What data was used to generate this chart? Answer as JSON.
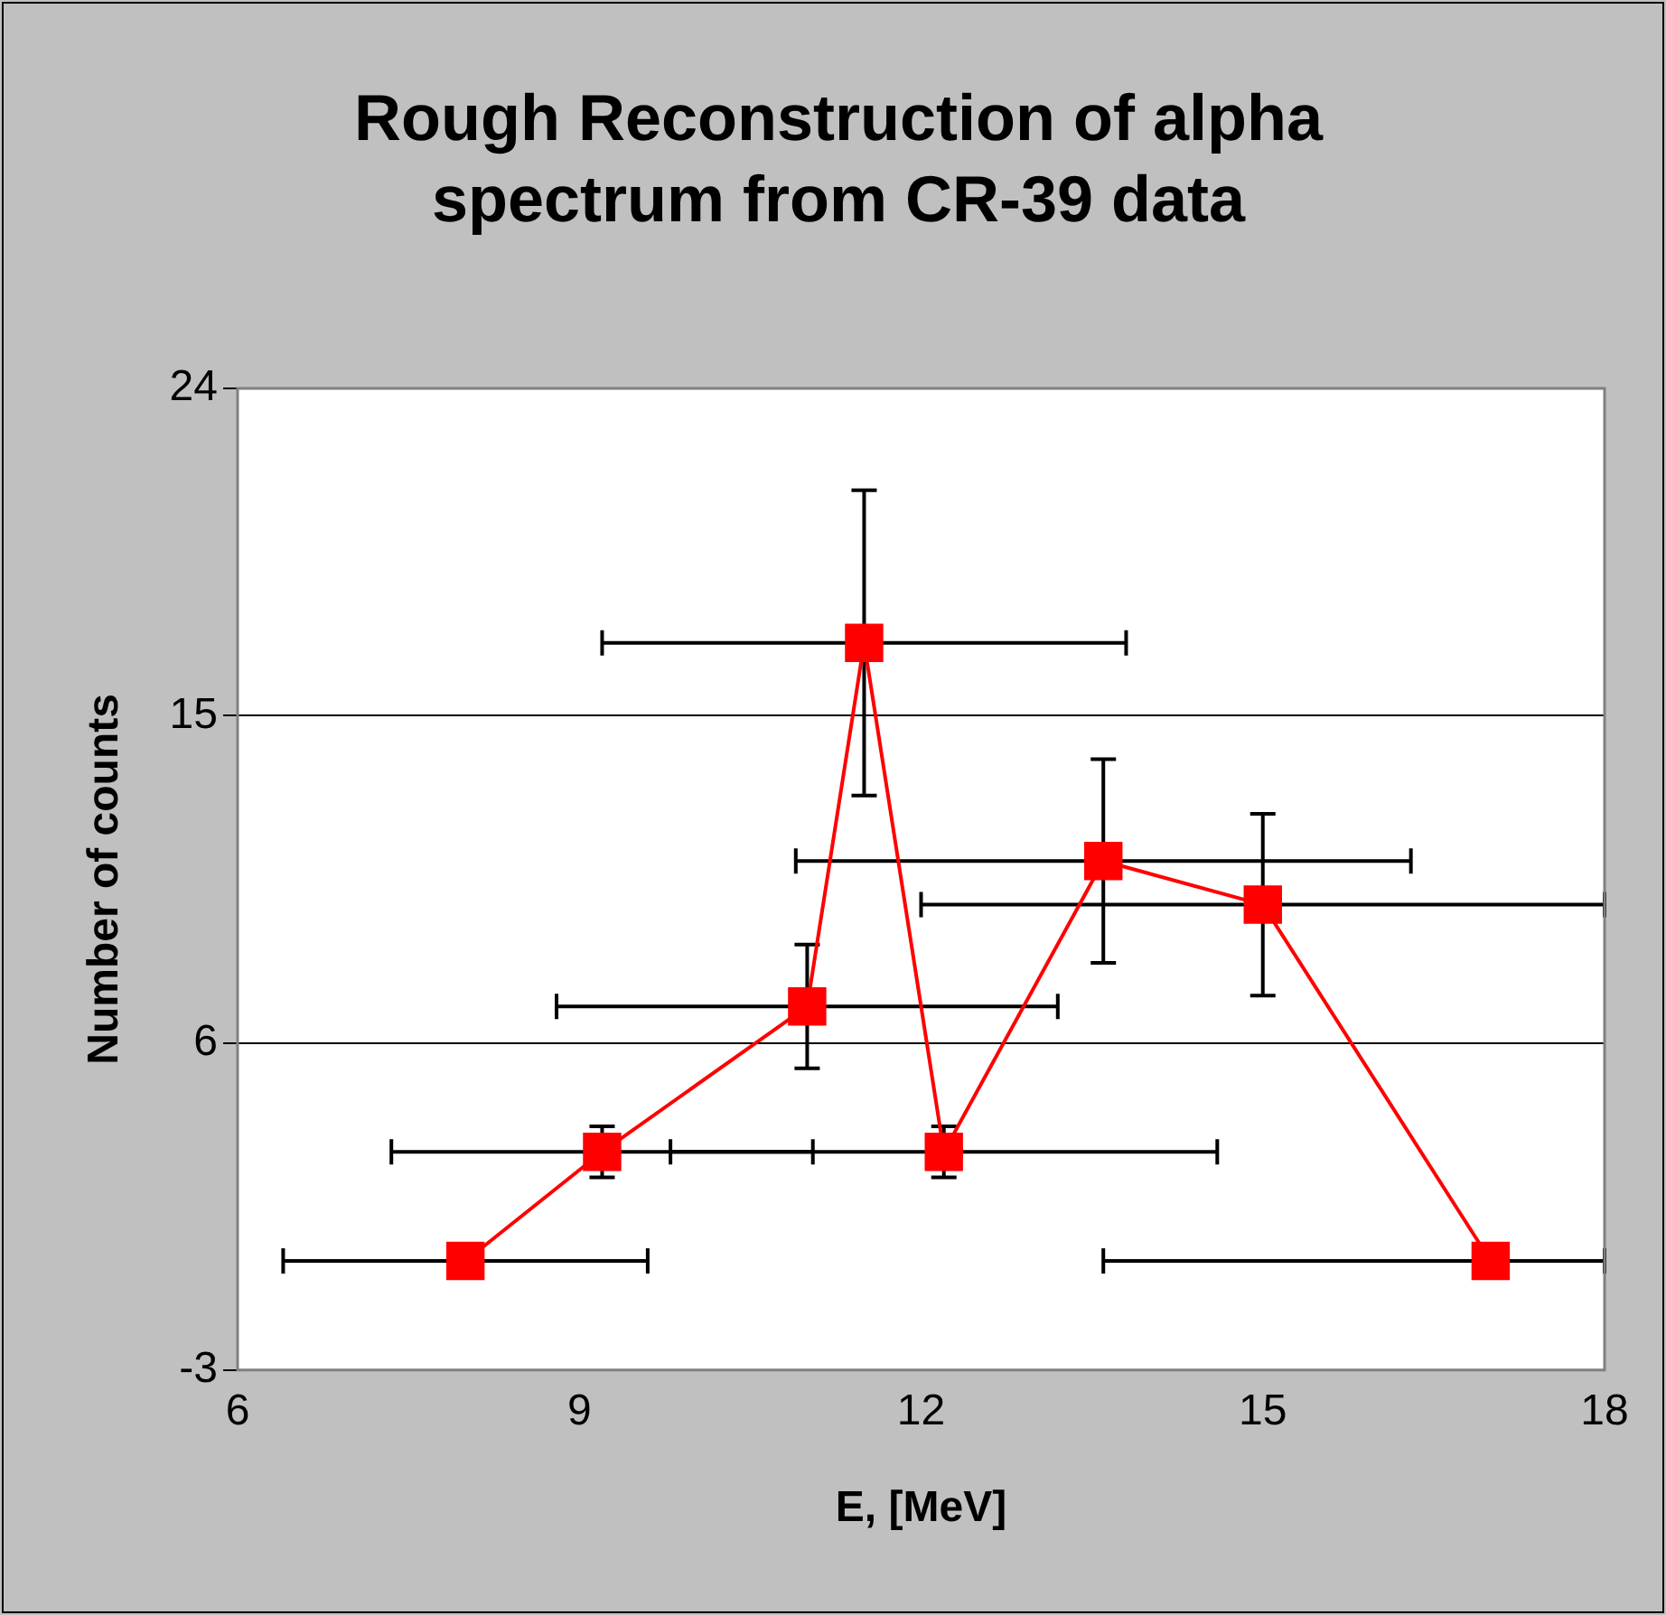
{
  "chart_data": {
    "type": "line",
    "title": "Rough Reconstruction of alpha spectrum from CR-39 data",
    "xlabel": "E, [MeV]",
    "ylabel": "Number of counts",
    "x": [
      8.0,
      9.2,
      11.0,
      11.5,
      12.2,
      13.6,
      15.0,
      17.0
    ],
    "series": [
      {
        "color": "#ff0000",
        "values": [
          0,
          3,
          7,
          17,
          3,
          11,
          9.8,
          0
        ],
        "errors": [
          null,
          0.7,
          1.7,
          4.2,
          0.7,
          2.8,
          2.5,
          null
        ],
        "xerrors": [
          1.6,
          1.85,
          2.2,
          2.3,
          2.4,
          2.7,
          3.0,
          [
            13.6,
            18
          ]
        ]
      }
    ],
    "xlim": [
      6,
      18
    ],
    "xticks": [
      6,
      9,
      12,
      15,
      18
    ],
    "ylim": [
      -3,
      24
    ],
    "yticks": [
      -3,
      6,
      15,
      24
    ],
    "grid": "y",
    "legend": false,
    "marker": "square",
    "line_style": "solid"
  }
}
